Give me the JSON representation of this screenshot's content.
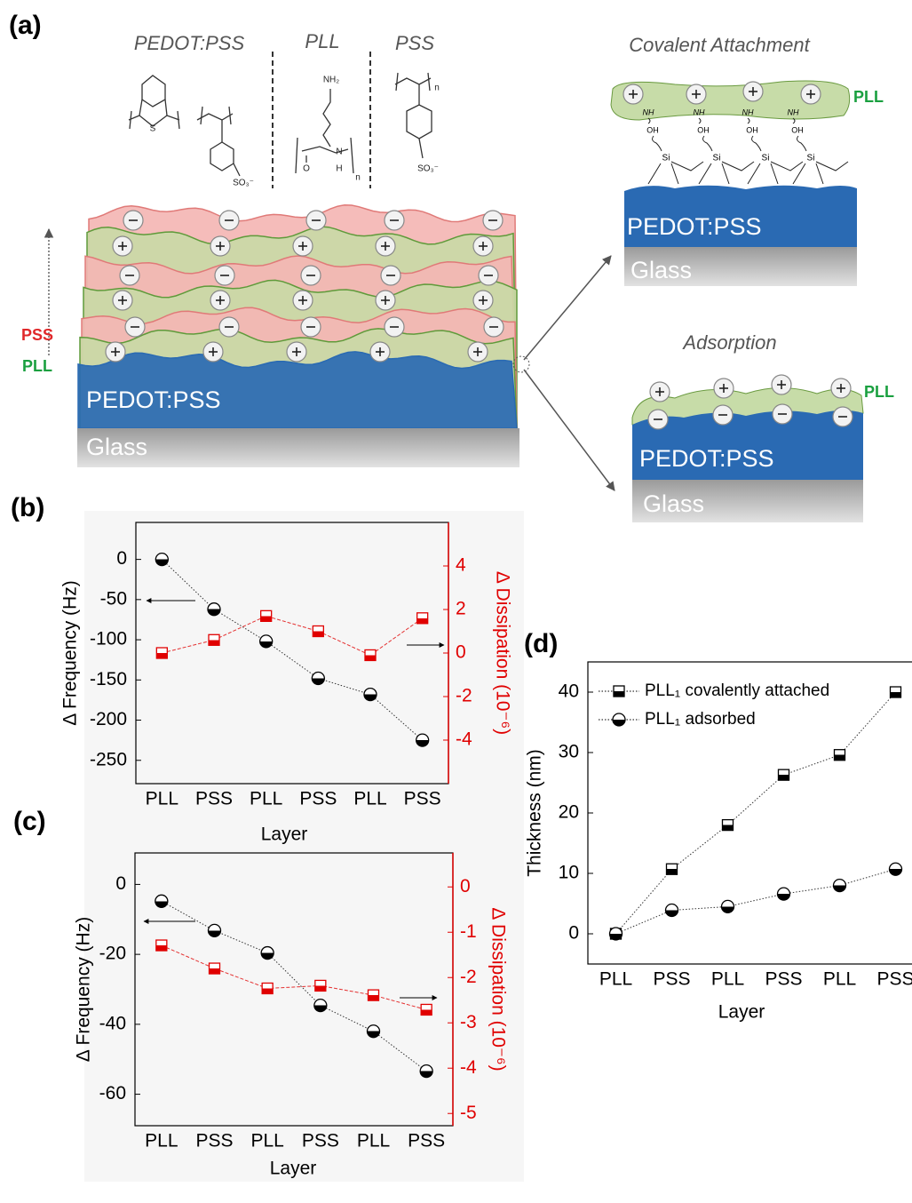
{
  "diagram": {
    "panel_label": "(a)",
    "headers": [
      "PEDOT:PSS",
      "PLL",
      "PSS"
    ],
    "structure_labels": [
      "S",
      "SO₃⁻",
      "NH₂",
      "O",
      "N",
      "H",
      "n",
      "SO₃⁻",
      "n"
    ],
    "stack": {
      "layer_labels": [
        "PSS",
        "PLL"
      ],
      "substrate": "PEDOT:PSS",
      "base": "Glass"
    },
    "covalent": {
      "title": "Covalent Attachment",
      "layer": "PLL",
      "bond_labels": [
        "NH",
        "NH",
        "NH",
        "NH",
        "OH",
        "OH",
        "OH",
        "OH",
        "Si",
        "Si",
        "Si",
        "Si"
      ],
      "substrate": "PEDOT:PSS",
      "base": "Glass"
    },
    "adsorption": {
      "title": "Adsorption",
      "layer": "PLL",
      "substrate": "PEDOT:PSS",
      "base": "Glass"
    }
  },
  "chart_data": [
    {
      "type": "line",
      "panel_label": "(b)",
      "categories": [
        "PLL",
        "PSS",
        "PLL",
        "PSS",
        "PLL",
        "PSS"
      ],
      "x_label": "Layer",
      "y_label": "Δ Frequency (Hz)",
      "y2_label": "Δ Dissipation (10⁻⁶)",
      "series": [
        {
          "color": "#000000",
          "marker": "circle",
          "values": [
            0,
            -62,
            -102,
            -148,
            -168,
            -225
          ]
        },
        {
          "color": "#e00000",
          "marker": "square",
          "axis": "y2",
          "values": [
            0,
            0.6,
            1.7,
            1.0,
            -0.1,
            1.6
          ]
        }
      ],
      "ylim": [
        -279,
        46
      ],
      "yticks": [
        0,
        -50,
        -100,
        -150,
        -200,
        -250
      ],
      "y2lim": [
        -6,
        6
      ],
      "y2ticks": [
        4,
        2,
        0,
        -2,
        -4
      ],
      "y2_color": "#e00000"
    },
    {
      "type": "line",
      "panel_label": "(c)",
      "categories": [
        "PLL",
        "PSS",
        "PLL",
        "PSS",
        "PLL",
        "PSS"
      ],
      "x_label": "Layer",
      "y_label": "Δ Frequency (Hz)",
      "y2_label": "Δ Dissipation (10⁻⁶)",
      "series": [
        {
          "color": "#000000",
          "marker": "circle",
          "values": [
            -4.8,
            -13.2,
            -19.6,
            -34.6,
            -42,
            -53.4
          ]
        },
        {
          "color": "#e00000",
          "marker": "square",
          "axis": "y2",
          "values": [
            -1.29,
            -1.8,
            -2.24,
            -2.18,
            -2.39,
            -2.71
          ]
        }
      ],
      "ylim": [
        -69,
        9
      ],
      "yticks": [
        0,
        -20,
        -40,
        -60
      ],
      "y2lim": [
        -5.27,
        0.75
      ],
      "y2ticks": [
        0,
        -1,
        -2,
        -3,
        -4,
        -5
      ],
      "y2_color": "#e00000"
    },
    {
      "type": "line",
      "panel_label": "(d)",
      "categories": [
        "PLL",
        "PSS",
        "PLL",
        "PSS",
        "PLL",
        "PSS"
      ],
      "x_label": "Layer",
      "y_label": "Thickness (nm)",
      "legend": "top-left",
      "series": [
        {
          "name": "PLL₁ covalently attached",
          "color": "#000000",
          "marker": "square",
          "values": [
            0,
            10.7,
            18,
            26.3,
            29.6,
            40
          ]
        },
        {
          "name": "PLL₁ adsorbed",
          "color": "#000000",
          "marker": "circle",
          "values": [
            0,
            3.9,
            4.5,
            6.6,
            8.0,
            10.7
          ]
        }
      ],
      "ylim": [
        -5,
        45
      ],
      "yticks": [
        0,
        10,
        20,
        30,
        40
      ]
    }
  ]
}
